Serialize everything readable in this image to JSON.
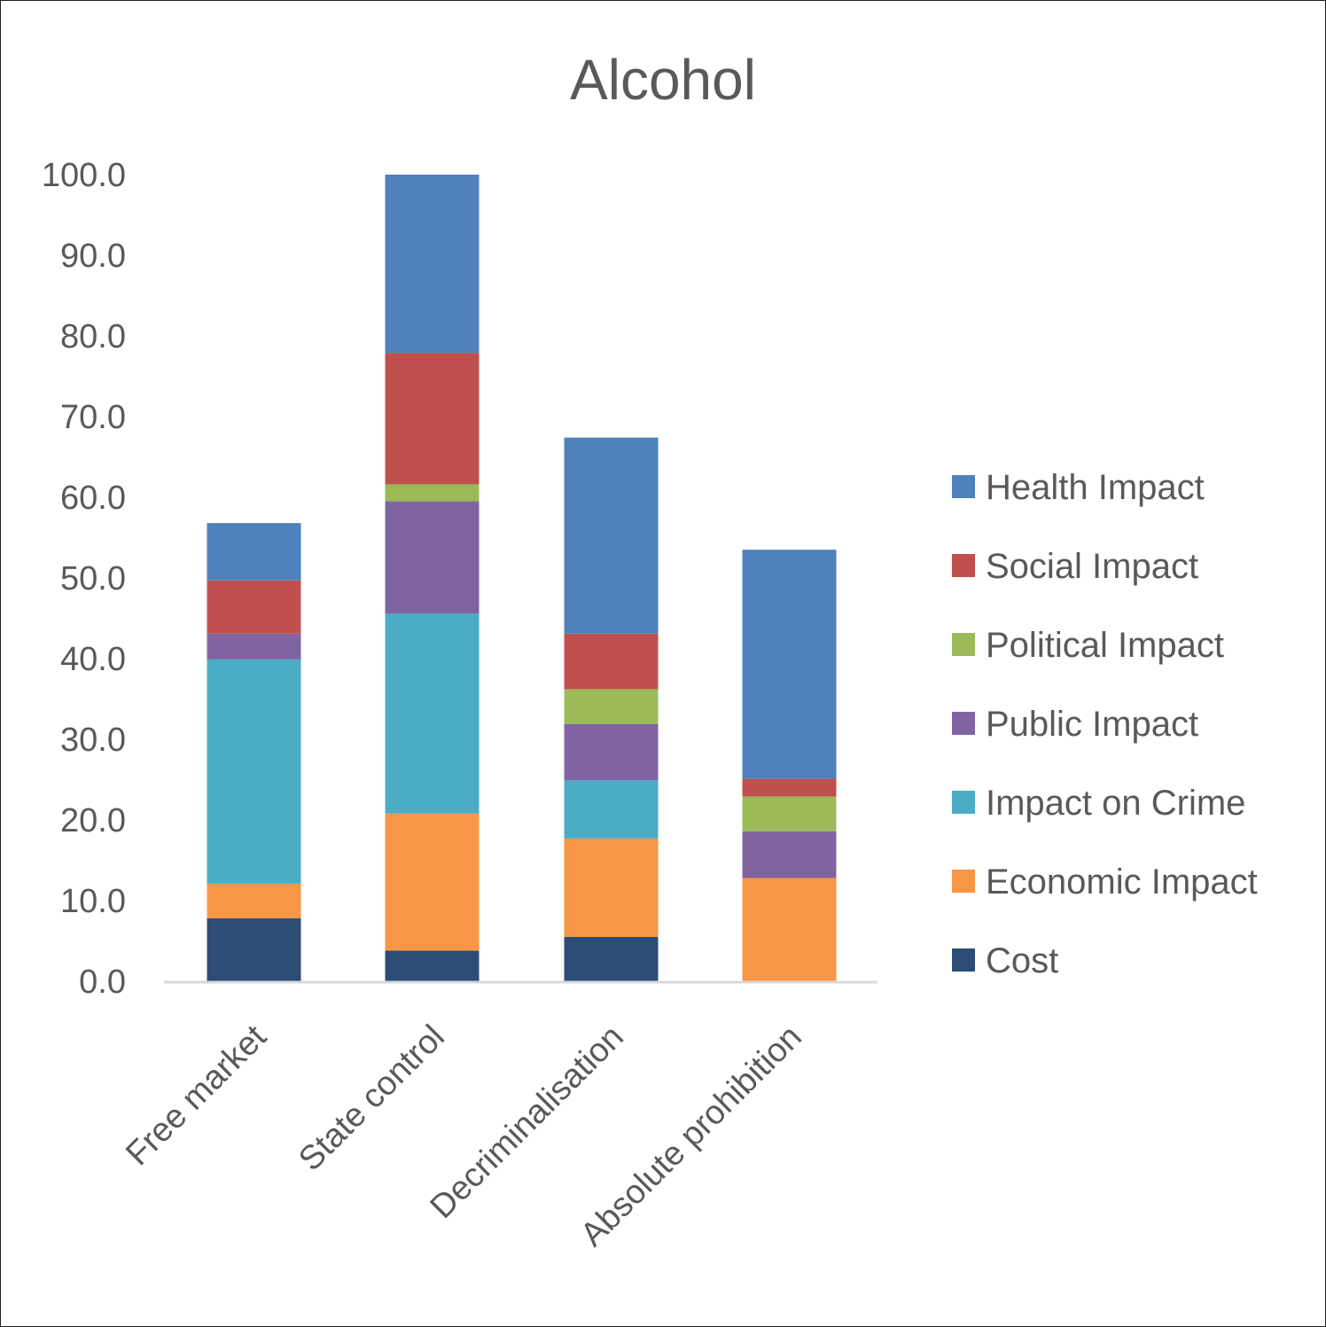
{
  "chart_data": {
    "type": "bar",
    "stacked": true,
    "title": "Alcohol",
    "xlabel": "",
    "ylabel": "",
    "ylim": [
      0,
      100
    ],
    "yticks": [
      "0.0",
      "10.0",
      "20.0",
      "30.0",
      "40.0",
      "50.0",
      "60.0",
      "70.0",
      "80.0",
      "90.0",
      "100.0"
    ],
    "categories": [
      "Free market",
      "State control",
      "Decriminalisation",
      "Absolute prohibition"
    ],
    "grid": false,
    "legend_position": "right",
    "series": [
      {
        "name": "Cost",
        "color": "#2c4d75",
        "values": [
          7.8,
          3.8,
          5.5,
          0.0
        ]
      },
      {
        "name": "Economic Impact",
        "color": "#f79646",
        "values": [
          4.3,
          17.0,
          12.2,
          12.8
        ]
      },
      {
        "name": "Impact on Crime",
        "color": "#4bacc6",
        "values": [
          27.8,
          24.8,
          7.2,
          0.0
        ]
      },
      {
        "name": "Public Impact",
        "color": "#8064a2",
        "values": [
          3.2,
          13.9,
          7.0,
          5.8
        ]
      },
      {
        "name": "Political Impact",
        "color": "#9bbb59",
        "values": [
          0.0,
          2.1,
          4.3,
          4.3
        ]
      },
      {
        "name": "Social Impact",
        "color": "#c0504d",
        "values": [
          6.6,
          16.3,
          6.9,
          2.2
        ]
      },
      {
        "name": "Health Impact",
        "color": "#4f81bd",
        "values": [
          7.1,
          22.1,
          24.3,
          28.4
        ]
      }
    ]
  }
}
